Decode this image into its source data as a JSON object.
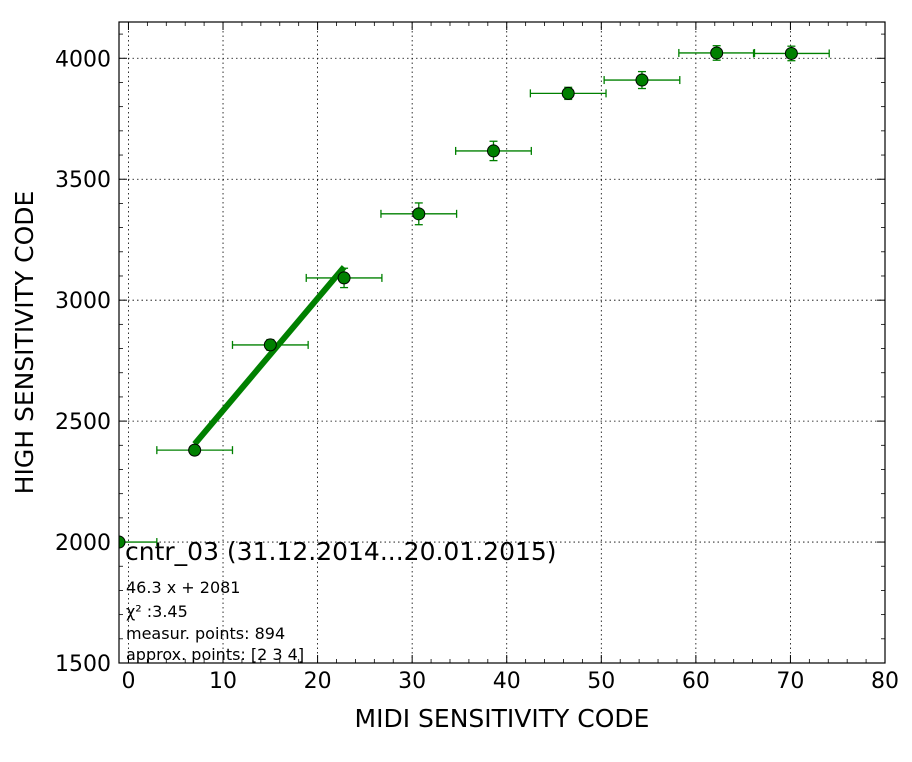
{
  "chart_data": {
    "type": "scatter",
    "xlabel": "MIDI SENSITIVITY CODE",
    "ylabel": "HIGH SENSITIVITY CODE",
    "xlim": [
      -1,
      80
    ],
    "ylim": [
      1500,
      4150
    ],
    "xticks": [
      0,
      10,
      20,
      30,
      40,
      50,
      60,
      70,
      80
    ],
    "yticks": [
      1500,
      2000,
      2500,
      3000,
      3500,
      4000
    ],
    "grid": true,
    "colors": {
      "series": "#008000",
      "fit": "#008000",
      "marker_edge": "#000000"
    },
    "points": [
      {
        "x": -1.0,
        "y": 2000,
        "xerr": 4.0,
        "yerr": 5
      },
      {
        "x": 7.0,
        "y": 2380,
        "xerr": 4.0,
        "yerr": 18
      },
      {
        "x": 15.0,
        "y": 2815,
        "xerr": 4.0,
        "yerr": 22
      },
      {
        "x": 22.8,
        "y": 3092,
        "xerr": 4.0,
        "yerr": 40
      },
      {
        "x": 30.7,
        "y": 3357,
        "xerr": 4.0,
        "yerr": 45
      },
      {
        "x": 38.6,
        "y": 3617,
        "xerr": 4.0,
        "yerr": 40
      },
      {
        "x": 46.5,
        "y": 3855,
        "xerr": 4.0,
        "yerr": 25
      },
      {
        "x": 54.3,
        "y": 3910,
        "xerr": 4.0,
        "yerr": 35
      },
      {
        "x": 62.2,
        "y": 4022,
        "xerr": 4.0,
        "yerr": 30
      },
      {
        "x": 70.1,
        "y": 4020,
        "xerr": 4.0,
        "yerr": 30
      }
    ],
    "fit_line": {
      "slope": 46.3,
      "intercept": 2081,
      "x_range": [
        7.0,
        22.8
      ]
    },
    "annotation": {
      "title": "cntr_03 (31.12.2014...20.01.2015)",
      "equation": "46.3 x + 2081",
      "chi2_label": "χ² :3.45",
      "points_line": "measur. points: 894",
      "approx_line": "approx. points: [2 3 4]"
    }
  }
}
